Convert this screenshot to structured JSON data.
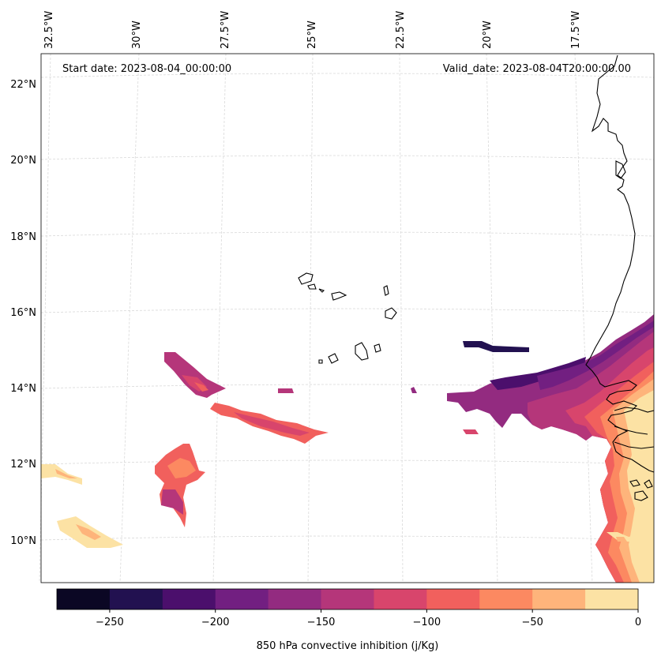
{
  "map": {
    "start_date_text": "Start date: 2023-08-04_00:00:00",
    "valid_date_text": "Valid_date: 2023-08-04T20:00:00.00",
    "lat_labels": [
      "22°N",
      "20°N",
      "18°N",
      "16°N",
      "14°N",
      "12°N",
      "10°N"
    ],
    "lon_labels": [
      "32.5°W",
      "30°W",
      "27.5°W",
      "25°W",
      "22.5°W",
      "20°W",
      "17.5°W"
    ],
    "field": "850 hPa convective inhibition",
    "coastline_color": "#000000"
  },
  "colorbar": {
    "label": "850 hPa convective inhibition (j/Kg)",
    "ticks": [
      "−250",
      "−200",
      "−150",
      "−100",
      "−50",
      "0"
    ],
    "tick_values": [
      -250,
      -200,
      -150,
      -100,
      -50,
      0
    ],
    "range": [
      -275,
      0
    ],
    "step": 25,
    "colors": [
      "#0b0724",
      "#221150",
      "#4b0f6c",
      "#721f81",
      "#932b80",
      "#b5367a",
      "#d8456c",
      "#f1605d",
      "#fc8961",
      "#feb47b",
      "#fce2a4"
    ]
  }
}
